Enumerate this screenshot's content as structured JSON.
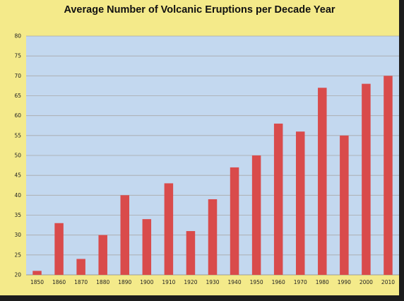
{
  "chart_data": {
    "type": "bar",
    "title": "Average Number of Volcanic Eruptions per Decade Year",
    "xlabel": "",
    "ylabel": "",
    "categories": [
      "1850",
      "1860",
      "1870",
      "1880",
      "1890",
      "1900",
      "1910",
      "1920",
      "1930",
      "1940",
      "1950",
      "1960",
      "1970",
      "1980",
      "1990",
      "2000",
      "2010"
    ],
    "values": [
      21,
      33,
      24,
      30,
      40,
      34,
      43,
      31,
      39,
      47,
      50,
      58,
      56,
      67,
      55,
      68,
      70
    ],
    "ylim": [
      20,
      80
    ],
    "yticks": [
      20,
      25,
      30,
      35,
      40,
      45,
      50,
      55,
      60,
      65,
      70,
      75,
      80
    ],
    "grid": true,
    "legend": "none",
    "colors": {
      "bar": "#d94b4b",
      "plot_background": "#c3d8ef",
      "chart_background": "#f4ea8a",
      "gridline": "#a9a9a9"
    }
  }
}
